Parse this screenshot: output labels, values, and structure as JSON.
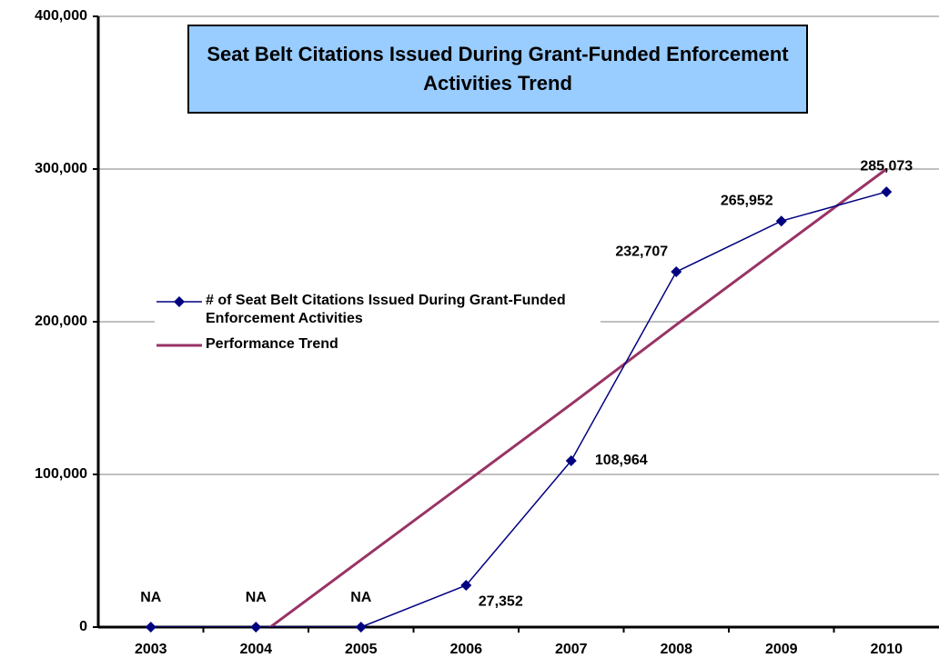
{
  "chart_data": {
    "type": "line",
    "title": "Seat Belt Citations Issued During Grant-Funded Enforcement Activities Trend",
    "categories": [
      "2003",
      "2004",
      "2005",
      "2006",
      "2007",
      "2008",
      "2009",
      "2010"
    ],
    "series": [
      {
        "name": "# of Seat Belt Citations Issued During Grant-Funded Enforcement Activities",
        "color": "#000080",
        "values": [
          0,
          0,
          0,
          27352,
          108964,
          232707,
          265952,
          285073
        ],
        "value_labels": [
          "NA",
          "NA",
          "NA",
          "27,352",
          "108,964",
          "232,707",
          "265,952",
          "285,073"
        ]
      },
      {
        "name": "Performance Trend",
        "color": "#993366",
        "values": [
          null,
          -7000,
          44000,
          95000,
          146000,
          198000,
          249000,
          300000
        ]
      }
    ],
    "ylim": [
      0,
      400000
    ],
    "yticks": [
      {
        "value": 0,
        "label": "0"
      },
      {
        "value": 100000,
        "label": "100,000"
      },
      {
        "value": 200000,
        "label": "200,000"
      },
      {
        "value": 300000,
        "label": "300,000"
      },
      {
        "value": 400000,
        "label": "400,000"
      }
    ],
    "grid": true
  }
}
